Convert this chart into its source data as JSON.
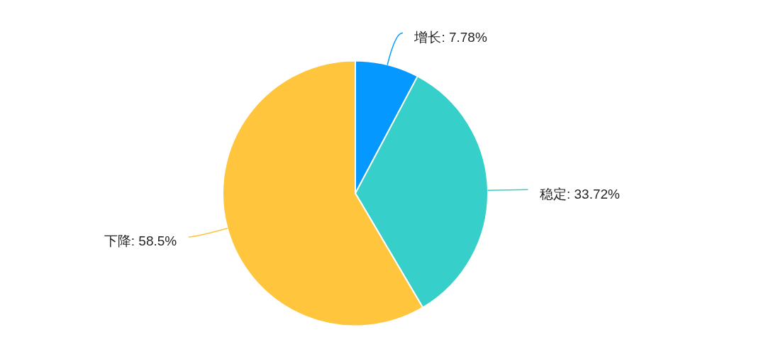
{
  "chart_data": {
    "type": "pie",
    "categories": [
      "增长",
      "稳定",
      "下降"
    ],
    "values": [
      7.78,
      33.72,
      58.5
    ],
    "colors": [
      "#0599ff",
      "#36cfc9",
      "#ffc53d"
    ],
    "value_labels": [
      "7.78%",
      "33.72%",
      "58.5%"
    ]
  }
}
